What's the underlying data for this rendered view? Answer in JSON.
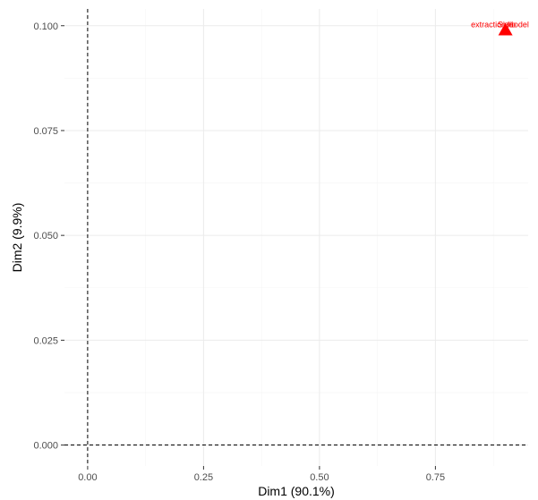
{
  "chart_data": {
    "type": "scatter",
    "title": "",
    "xlabel": "Dim1 (90.1%)",
    "ylabel": "Dim2 (9.9%)",
    "xlim": [
      -0.05,
      0.95
    ],
    "ylim": [
      -0.005,
      0.104
    ],
    "x_ticks": [
      0.0,
      0.25,
      0.5,
      0.75
    ],
    "x_tick_labels": [
      "0.00",
      "0.25",
      "0.50",
      "0.75"
    ],
    "y_ticks": [
      0.0,
      0.025,
      0.05,
      0.075,
      0.1
    ],
    "y_tick_labels": [
      "0.000",
      "0.025",
      "0.050",
      "0.075",
      "0.100"
    ],
    "grid": true,
    "reference_lines": {
      "x": 0,
      "y": 0,
      "style": "dashed"
    },
    "points": [
      {
        "x": 0.901,
        "y": 0.099,
        "marker": "triangle",
        "color": "#ff0000",
        "labels": [
          "extraction",
          "Size",
          "model",
          "lib"
        ]
      }
    ],
    "colors": {
      "point": "#ff0000",
      "grid_major": "#ebebeb",
      "grid_minor": "#f5f5f5",
      "text": "#4d4d4d"
    }
  }
}
